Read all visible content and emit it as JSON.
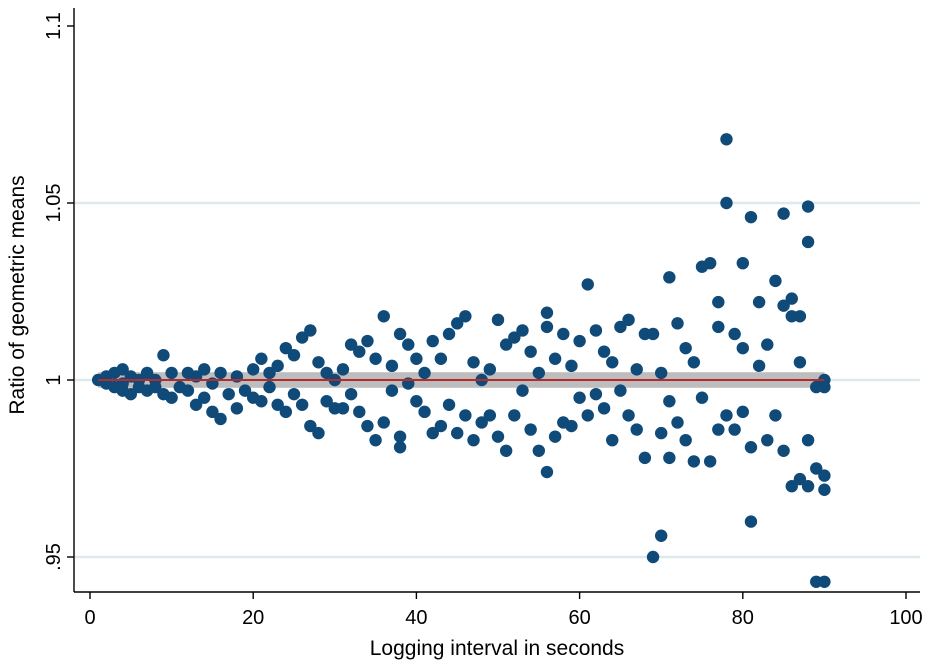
{
  "chart_data": {
    "type": "scatter",
    "title": "",
    "xlabel": "Logging interval in seconds",
    "ylabel": "Ratio of geometric means",
    "xlim": [
      0,
      100
    ],
    "ylim": [
      0.94,
      1.1
    ],
    "xticks": [
      0,
      20,
      40,
      60,
      80,
      100
    ],
    "xtick_labels": [
      "0",
      "20",
      "40",
      "60",
      "80",
      "100"
    ],
    "yticks": [
      0.95,
      1,
      1.05,
      1.1
    ],
    "ytick_labels": [
      ".95",
      "1",
      "1.05",
      "1.1"
    ],
    "grid": "horizontal",
    "legend": "none",
    "colors": {
      "points": "#0f4a78",
      "band": "#bdbdbd",
      "fit_line": "#b52a2a",
      "grid": "#dde9ea"
    },
    "fit": {
      "y": 1.0,
      "x_range": [
        1,
        90
      ],
      "band_half_width": 0.0022
    },
    "points": [
      [
        1,
        1.0
      ],
      [
        2,
        0.999
      ],
      [
        2,
        1.001
      ],
      [
        3,
        0.998
      ],
      [
        3,
        1.002
      ],
      [
        4,
        0.997
      ],
      [
        4,
        1.003
      ],
      [
        4,
        0.999
      ],
      [
        5,
        0.996
      ],
      [
        5,
        1.001
      ],
      [
        6,
        0.998
      ],
      [
        6,
        1.0
      ],
      [
        7,
        0.997
      ],
      [
        7,
        1.002
      ],
      [
        8,
        1.0
      ],
      [
        8,
        0.998
      ],
      [
        9,
        1.007
      ],
      [
        9,
        0.996
      ],
      [
        10,
        0.995
      ],
      [
        10,
        1.002
      ],
      [
        11,
        0.998
      ],
      [
        12,
        1.002
      ],
      [
        12,
        0.997
      ],
      [
        13,
        0.993
      ],
      [
        13,
        1.001
      ],
      [
        14,
        0.995
      ],
      [
        14,
        1.003
      ],
      [
        15,
        0.991
      ],
      [
        15,
        0.999
      ],
      [
        16,
        0.989
      ],
      [
        16,
        1.002
      ],
      [
        17,
        0.996
      ],
      [
        18,
        0.992
      ],
      [
        18,
        1.001
      ],
      [
        19,
        0.997
      ],
      [
        20,
        1.003
      ],
      [
        20,
        0.995
      ],
      [
        21,
        1.006
      ],
      [
        21,
        0.994
      ],
      [
        22,
        0.998
      ],
      [
        22,
        1.002
      ],
      [
        23,
        0.993
      ],
      [
        23,
        1.004
      ],
      [
        24,
        0.991
      ],
      [
        24,
        1.009
      ],
      [
        25,
        0.996
      ],
      [
        25,
        1.007
      ],
      [
        26,
        0.993
      ],
      [
        26,
        1.012
      ],
      [
        27,
        1.014
      ],
      [
        27,
        0.987
      ],
      [
        28,
        0.985
      ],
      [
        28,
        1.005
      ],
      [
        29,
        0.994
      ],
      [
        29,
        1.002
      ],
      [
        30,
        0.992
      ],
      [
        30,
        1.0
      ],
      [
        31,
        0.992
      ],
      [
        31,
        1.003
      ],
      [
        32,
        1.01
      ],
      [
        32,
        0.996
      ],
      [
        33,
        1.008
      ],
      [
        33,
        0.991
      ],
      [
        34,
        0.987
      ],
      [
        34,
        1.011
      ],
      [
        35,
        0.983
      ],
      [
        35,
        1.006
      ],
      [
        36,
        0.988
      ],
      [
        36,
        1.018
      ],
      [
        37,
        1.004
      ],
      [
        37,
        0.997
      ],
      [
        38,
        0.981
      ],
      [
        38,
        1.013
      ],
      [
        38,
        0.984
      ],
      [
        39,
        1.01
      ],
      [
        39,
        0.999
      ],
      [
        40,
        0.994
      ],
      [
        40,
        1.006
      ],
      [
        41,
        0.991
      ],
      [
        41,
        1.002
      ],
      [
        42,
        0.985
      ],
      [
        42,
        1.011
      ],
      [
        43,
        1.006
      ],
      [
        43,
        0.987
      ],
      [
        44,
        1.013
      ],
      [
        44,
        0.993
      ],
      [
        45,
        1.016
      ],
      [
        45,
        0.985
      ],
      [
        46,
        1.018
      ],
      [
        46,
        0.99
      ],
      [
        47,
        1.005
      ],
      [
        47,
        0.983
      ],
      [
        48,
        0.988
      ],
      [
        48,
        1.0
      ],
      [
        49,
        0.99
      ],
      [
        49,
        1.003
      ],
      [
        50,
        0.984
      ],
      [
        50,
        1.017
      ],
      [
        51,
        0.98
      ],
      [
        51,
        1.01
      ],
      [
        52,
        0.99
      ],
      [
        52,
        1.012
      ],
      [
        53,
        0.997
      ],
      [
        53,
        1.014
      ],
      [
        54,
        0.986
      ],
      [
        54,
        1.008
      ],
      [
        55,
        0.98
      ],
      [
        55,
        1.002
      ],
      [
        56,
        0.974
      ],
      [
        56,
        1.019
      ],
      [
        56,
        1.015
      ],
      [
        57,
        0.984
      ],
      [
        57,
        1.006
      ],
      [
        58,
        0.988
      ],
      [
        58,
        1.013
      ],
      [
        59,
        0.987
      ],
      [
        59,
        1.004
      ],
      [
        60,
        0.995
      ],
      [
        60,
        1.011
      ],
      [
        61,
        1.027
      ],
      [
        61,
        0.99
      ],
      [
        62,
        1.014
      ],
      [
        62,
        0.996
      ],
      [
        63,
        0.992
      ],
      [
        63,
        1.008
      ],
      [
        64,
        0.983
      ],
      [
        64,
        1.005
      ],
      [
        65,
        1.015
      ],
      [
        65,
        0.997
      ],
      [
        66,
        1.017
      ],
      [
        66,
        0.99
      ],
      [
        67,
        0.986
      ],
      [
        67,
        1.003
      ],
      [
        68,
        0.978
      ],
      [
        68,
        1.013
      ],
      [
        69,
        0.95
      ],
      [
        69,
        1.013
      ],
      [
        70,
        0.956
      ],
      [
        70,
        0.985
      ],
      [
        70,
        1.002
      ],
      [
        71,
        0.978
      ],
      [
        71,
        1.029
      ],
      [
        71,
        0.994
      ],
      [
        72,
        1.016
      ],
      [
        72,
        0.988
      ],
      [
        73,
        1.009
      ],
      [
        73,
        0.983
      ],
      [
        74,
        0.977
      ],
      [
        74,
        1.005
      ],
      [
        75,
        1.032
      ],
      [
        75,
        0.995
      ],
      [
        76,
        1.033
      ],
      [
        76,
        0.977
      ],
      [
        77,
        1.022
      ],
      [
        77,
        0.986
      ],
      [
        77,
        1.015
      ],
      [
        78,
        1.068
      ],
      [
        78,
        1.05
      ],
      [
        78,
        0.99
      ],
      [
        79,
        1.013
      ],
      [
        79,
        0.986
      ],
      [
        80,
        1.033
      ],
      [
        80,
        1.009
      ],
      [
        80,
        0.991
      ],
      [
        81,
        1.046
      ],
      [
        81,
        0.96
      ],
      [
        81,
        0.981
      ],
      [
        82,
        1.022
      ],
      [
        82,
        1.004
      ],
      [
        83,
        0.983
      ],
      [
        83,
        1.01
      ],
      [
        84,
        1.028
      ],
      [
        84,
        0.99
      ],
      [
        85,
        1.047
      ],
      [
        85,
        1.021
      ],
      [
        85,
        0.98
      ],
      [
        86,
        1.023
      ],
      [
        86,
        0.97
      ],
      [
        86,
        1.018
      ],
      [
        87,
        1.018
      ],
      [
        87,
        1.005
      ],
      [
        87,
        0.972
      ],
      [
        88,
        1.049
      ],
      [
        88,
        1.039
      ],
      [
        88,
        0.983
      ],
      [
        88,
        0.97
      ],
      [
        89,
        0.975
      ],
      [
        89,
        0.943
      ],
      [
        89,
        0.998
      ],
      [
        90,
        0.943
      ],
      [
        90,
        0.969
      ],
      [
        90,
        0.973
      ],
      [
        90,
        1.0
      ],
      [
        90,
        0.998
      ]
    ]
  }
}
